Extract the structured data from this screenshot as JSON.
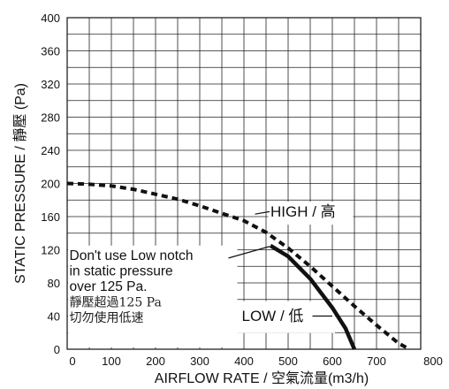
{
  "chart_data": {
    "type": "line",
    "xlabel": "AIRFLOW RATE / 空氣流量(m3/h)",
    "ylabel": "STATIC PRESSURE / 靜壓 (Pa)",
    "xlim": [
      0,
      800
    ],
    "ylim": [
      0,
      400
    ],
    "x_ticks": [
      "0",
      "100",
      "200",
      "300",
      "400",
      "500",
      "600",
      "700",
      "800"
    ],
    "y_ticks": [
      "0",
      "40",
      "80",
      "120",
      "160",
      "200",
      "240",
      "280",
      "320",
      "360",
      "400"
    ],
    "grid": true,
    "minor_grid_step": {
      "x": 50,
      "y": 20
    },
    "series": [
      {
        "name": "HIGH / 高",
        "style": "dashed",
        "color": "#111111",
        "points": [
          [
            0,
            200
          ],
          [
            50,
            199
          ],
          [
            100,
            197
          ],
          [
            150,
            193
          ],
          [
            200,
            187
          ],
          [
            250,
            181
          ],
          [
            300,
            173
          ],
          [
            350,
            164
          ],
          [
            400,
            155
          ],
          [
            450,
            141
          ],
          [
            500,
            122
          ],
          [
            550,
            100
          ],
          [
            600,
            76
          ],
          [
            650,
            52
          ],
          [
            700,
            29
          ],
          [
            750,
            7
          ],
          [
            775,
            0
          ]
        ]
      },
      {
        "name": "LOW / 低",
        "style": "solid",
        "color": "#111111",
        "points": [
          [
            460,
            125
          ],
          [
            500,
            112
          ],
          [
            550,
            85
          ],
          [
            600,
            50
          ],
          [
            630,
            25
          ],
          [
            650,
            0
          ]
        ]
      }
    ],
    "annotations": {
      "note_lines": [
        "Don't use Low notch",
        "in static pressure",
        "over 125 Pa."
      ],
      "note_cjk_lines": [
        "靜壓超過125 Pa",
        "切勿使用低速"
      ]
    }
  }
}
